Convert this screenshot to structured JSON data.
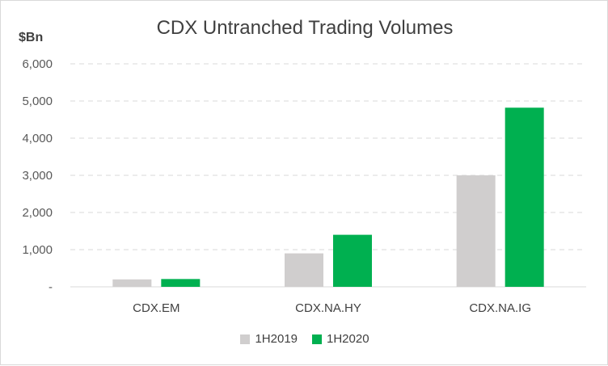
{
  "chart_data": {
    "type": "bar",
    "title": "CDX Untranched Trading Volumes",
    "ylabel": "$Bn",
    "xlabel": "",
    "ylim": [
      0,
      6000
    ],
    "yticks": [
      0,
      1000,
      2000,
      3000,
      4000,
      5000,
      6000
    ],
    "ytick_labels": [
      "-",
      "1,000",
      "2,000",
      "3,000",
      "4,000",
      "5,000",
      "6,000"
    ],
    "categories": [
      "CDX.EM",
      "CDX.NA.HY",
      "CDX.NA.IG"
    ],
    "series": [
      {
        "name": "1H2019",
        "color": "#d0cece",
        "values": [
          200,
          900,
          3000
        ]
      },
      {
        "name": "1H2020",
        "color": "#00b050",
        "values": [
          210,
          1400,
          4820
        ]
      }
    ],
    "grid": true,
    "legend": "bottom"
  }
}
